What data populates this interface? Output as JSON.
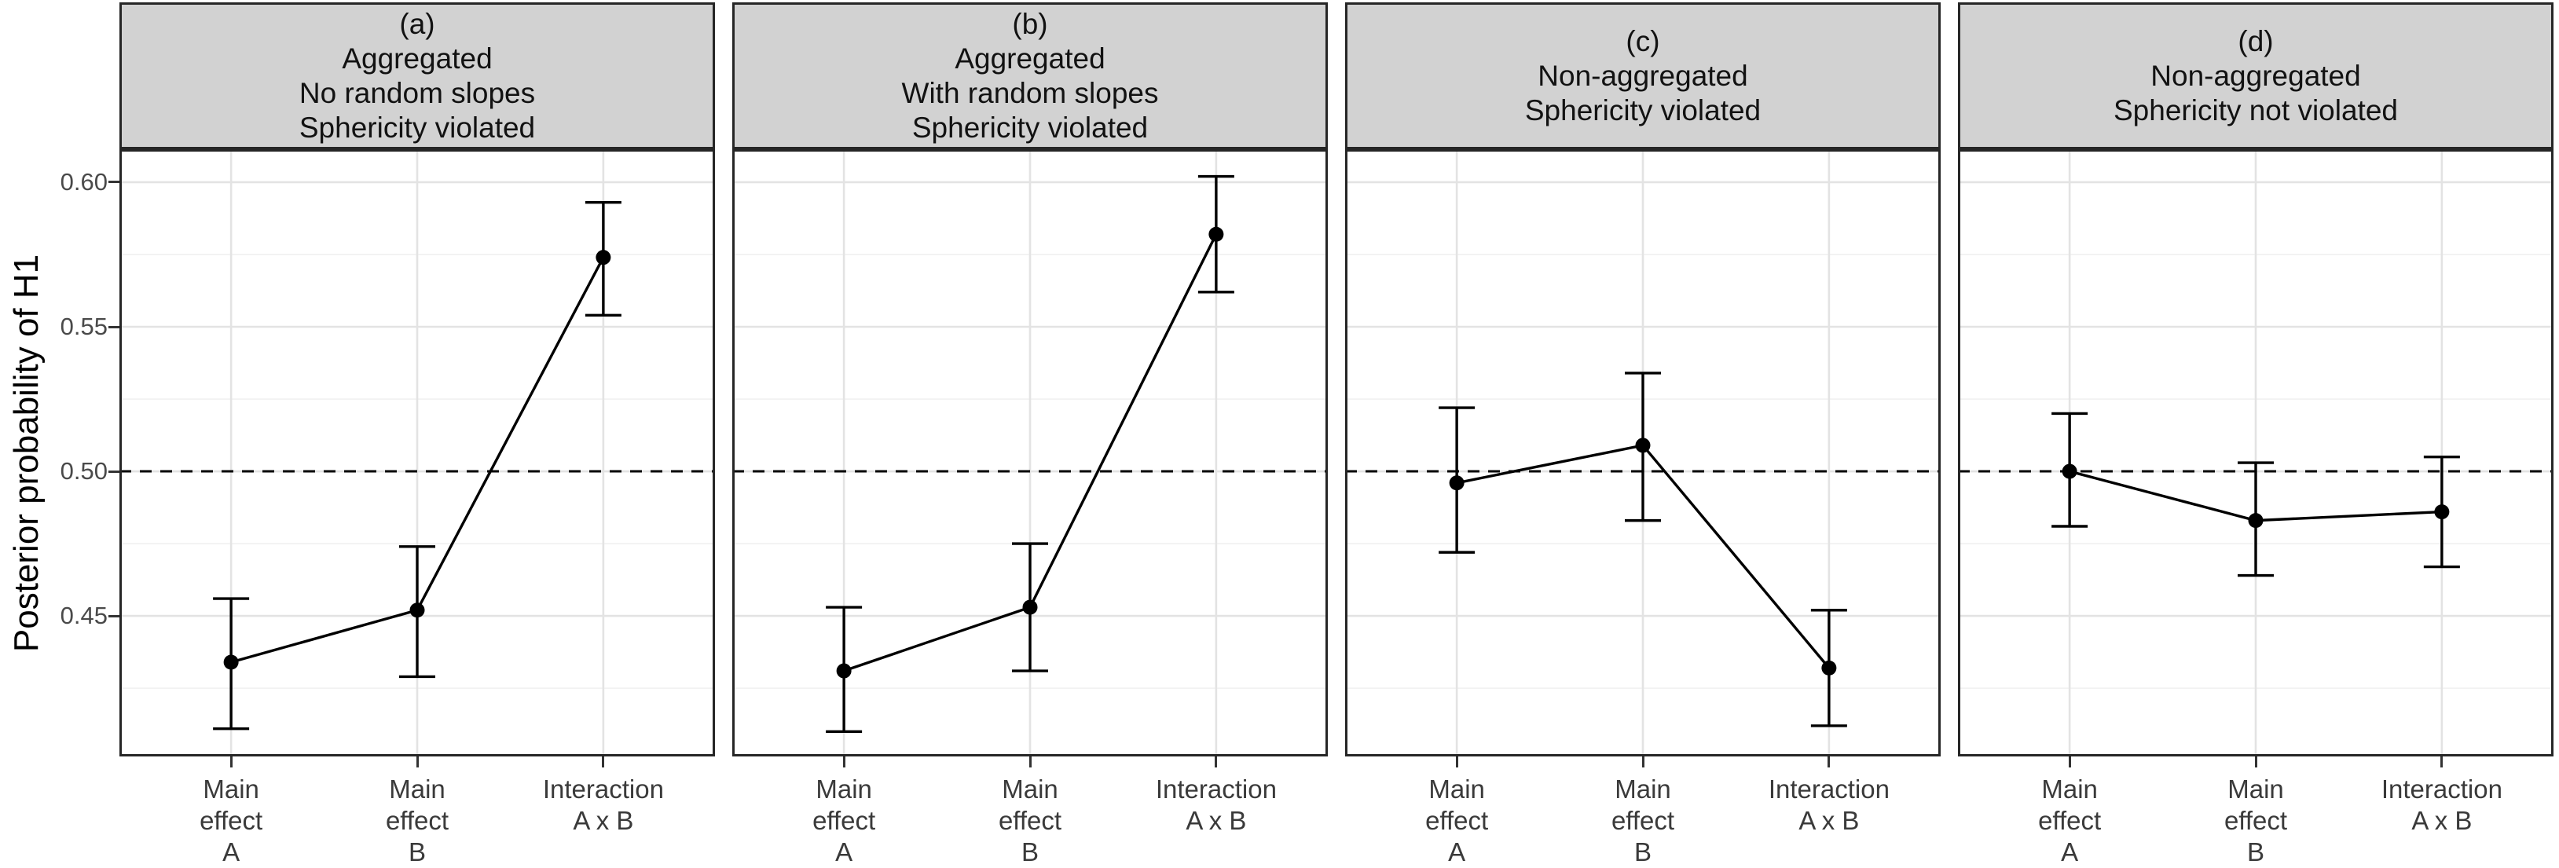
{
  "figure": {
    "y_axis_title": "Posterior probability of H1",
    "y_ticks": [
      {
        "label": "0.60",
        "value": 0.6
      },
      {
        "label": "0.55",
        "value": 0.55
      },
      {
        "label": "0.50",
        "value": 0.5
      },
      {
        "label": "0.45",
        "value": 0.45
      }
    ],
    "y_minor_gridlines": [
      0.575,
      0.525,
      0.475,
      0.425
    ],
    "y_range": {
      "min": 0.4014,
      "max": 0.6114
    },
    "reference_line": {
      "value": 0.5,
      "style": "dashed",
      "color": "#000000"
    },
    "x_category_labels": [
      [
        "Main",
        "effect",
        "A"
      ],
      [
        "Main",
        "effect",
        "B"
      ],
      [
        "Interaction",
        "A x B"
      ]
    ],
    "colors": {
      "strip_fill": "#d2d2d2",
      "strip_border": "#262626",
      "panel_border": "#262626",
      "grid_major": "#e3e3e3",
      "grid_minor": "#f1f1f1",
      "series": "#000000",
      "reference": "#000000",
      "tick_mark": "#333333",
      "tick_text": "#4a4a4a"
    }
  },
  "chart_data": [
    {
      "type": "line",
      "panel": "(a)",
      "strip_lines": [
        "(a)",
        "Aggregated",
        "No random slopes",
        "Sphericity violated"
      ],
      "categories": [
        "Main effect A",
        "Main effect B",
        "Interaction A x B"
      ],
      "values": [
        0.434,
        0.452,
        0.574
      ],
      "ci_lower": [
        0.411,
        0.429,
        0.554
      ],
      "ci_upper": [
        0.456,
        0.474,
        0.593
      ],
      "ylabel": "Posterior probability of H1",
      "ylim": [
        0.4,
        0.61
      ],
      "reference_line": 0.5,
      "error_bars": true,
      "grid": true,
      "legend": "none"
    },
    {
      "type": "line",
      "panel": "(b)",
      "strip_lines": [
        "(b)",
        "Aggregated",
        "With random slopes",
        "Sphericity violated"
      ],
      "categories": [
        "Main effect A",
        "Main effect B",
        "Interaction A x B"
      ],
      "values": [
        0.431,
        0.453,
        0.582
      ],
      "ci_lower": [
        0.41,
        0.431,
        0.562
      ],
      "ci_upper": [
        0.453,
        0.475,
        0.602
      ],
      "ylabel": "Posterior probability of H1",
      "ylim": [
        0.4,
        0.61
      ],
      "reference_line": 0.5,
      "error_bars": true,
      "grid": true,
      "legend": "none"
    },
    {
      "type": "line",
      "panel": "(c)",
      "strip_lines": [
        "(c)",
        "Non-aggregated",
        "Sphericity violated"
      ],
      "categories": [
        "Main effect A",
        "Main effect B",
        "Interaction A x B"
      ],
      "values": [
        0.496,
        0.509,
        0.432
      ],
      "ci_lower": [
        0.472,
        0.483,
        0.412
      ],
      "ci_upper": [
        0.522,
        0.534,
        0.452
      ],
      "ylabel": "Posterior probability of H1",
      "ylim": [
        0.4,
        0.61
      ],
      "reference_line": 0.5,
      "error_bars": true,
      "grid": true,
      "legend": "none"
    },
    {
      "type": "line",
      "panel": "(d)",
      "strip_lines": [
        "(d)",
        "Non-aggregated",
        "Sphericity not violated"
      ],
      "categories": [
        "Main effect A",
        "Main effect B",
        "Interaction A x B"
      ],
      "values": [
        0.5,
        0.483,
        0.486
      ],
      "ci_lower": [
        0.481,
        0.464,
        0.467
      ],
      "ci_upper": [
        0.52,
        0.503,
        0.505
      ],
      "ylabel": "Posterior probability of H1",
      "ylim": [
        0.4,
        0.61
      ],
      "reference_line": 0.5,
      "error_bars": true,
      "grid": true,
      "legend": "none"
    }
  ]
}
